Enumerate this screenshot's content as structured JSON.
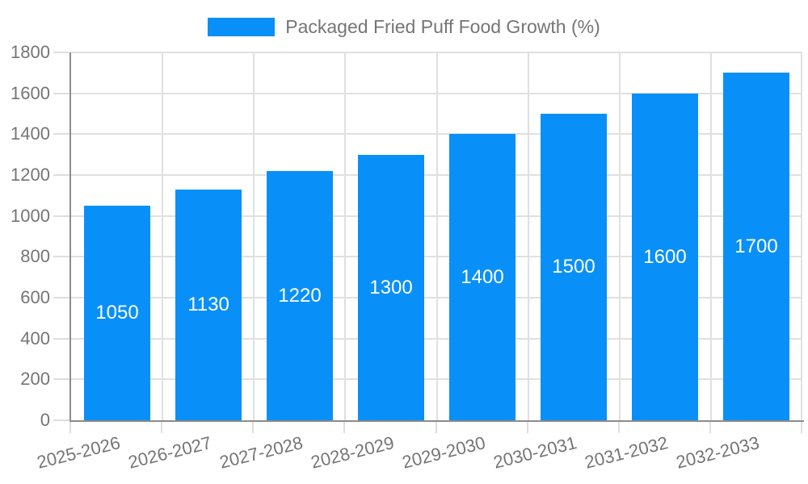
{
  "legend": {
    "label": "Packaged Fried Puff Food Growth (%)"
  },
  "colors": {
    "bar": "#0990f8",
    "label_text": "#757575",
    "grid": "#e0e0e0",
    "tick": "#dedede",
    "axis": "#8c8c8c",
    "value_label": "#ffffff",
    "background": "#ffffff"
  },
  "chart_data": {
    "type": "bar",
    "title": "",
    "series_name": "Packaged Fried Puff Food Growth (%)",
    "categories": [
      "2025-2026",
      "2026-2027",
      "2027-2028",
      "2028-2029",
      "2029-2030",
      "2030-2031",
      "2031-2032",
      "2032-2033"
    ],
    "values": [
      1050,
      1130,
      1220,
      1300,
      1400,
      1500,
      1600,
      1700
    ],
    "xlabel": "",
    "ylabel": "",
    "ylim": [
      0,
      1800
    ],
    "yticks": [
      0,
      200,
      400,
      600,
      800,
      1000,
      1200,
      1400,
      1600,
      1800
    ],
    "ytick_step": 200,
    "grid": true,
    "vertical_gridlines": true,
    "legend_position": "top-center",
    "value_label_position": "inside-center",
    "x_tick_label_rotation_deg": 14
  }
}
